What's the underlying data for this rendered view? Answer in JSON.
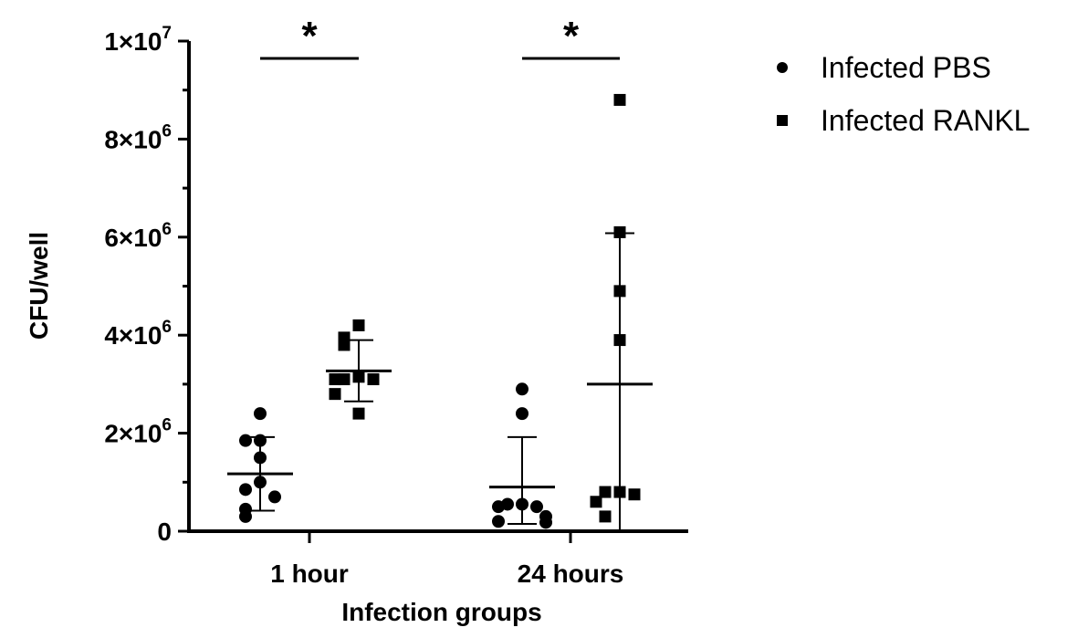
{
  "chart_data": {
    "type": "scatter",
    "xlabel": "Infection groups",
    "ylabel": "CFU/well",
    "categories": [
      "1 hour",
      "24 hours"
    ],
    "ylim": [
      0,
      10000000
    ],
    "y_ticks": [
      {
        "value": 0,
        "label": "0"
      },
      {
        "value": 2000000,
        "label": "2×10",
        "exp": "6"
      },
      {
        "value": 4000000,
        "label": "4×10",
        "exp": "6"
      },
      {
        "value": 6000000,
        "label": "6×10",
        "exp": "6"
      },
      {
        "value": 8000000,
        "label": "8×10",
        "exp": "6"
      },
      {
        "value": 10000000,
        "label": "1×10",
        "exp": "7"
      }
    ],
    "series": [
      {
        "name": "Infected PBS",
        "marker": "circle",
        "groups": [
          {
            "category": "1 hour",
            "points": [
              2400000,
              1850000,
              1850000,
              1500000,
              1000000,
              850000,
              700000,
              450000,
              300000
            ],
            "mean": 1170000,
            "sd_low": 420000,
            "sd_high": 1920000
          },
          {
            "category": "24 hours",
            "points": [
              2900000,
              2400000,
              550000,
              550000,
              500000,
              500000,
              300000,
              200000,
              180000
            ],
            "mean": 900000,
            "sd_low": 150000,
            "sd_high": 1920000
          }
        ]
      },
      {
        "name": "Infected RANKL",
        "marker": "square",
        "groups": [
          {
            "category": "1 hour",
            "points": [
              4200000,
              3950000,
              3800000,
              3150000,
              3100000,
              3100000,
              3100000,
              2800000,
              2400000
            ],
            "mean": 3270000,
            "sd_low": 2650000,
            "sd_high": 3900000
          },
          {
            "category": "24 hours",
            "points": [
              8800000,
              6100000,
              4900000,
              3900000,
              800000,
              800000,
              750000,
              600000,
              300000
            ],
            "mean": 3000000,
            "sd_low": 0,
            "sd_high": 6080000
          }
        ]
      }
    ],
    "annotations": [
      {
        "category": "1 hour",
        "text": "*"
      },
      {
        "category": "24 hours",
        "text": "*"
      }
    ],
    "legend_position": "top-right",
    "grid": false
  }
}
